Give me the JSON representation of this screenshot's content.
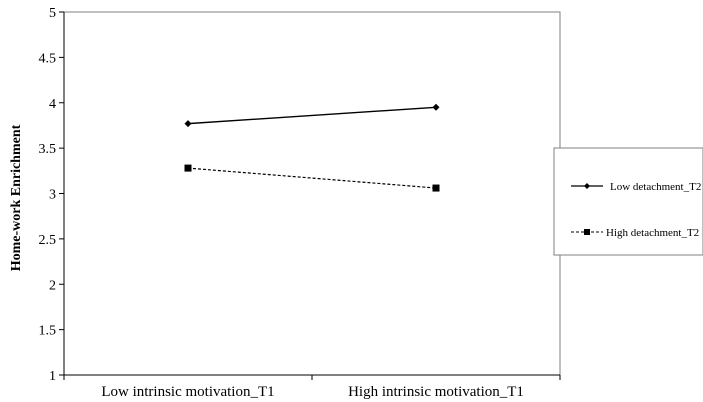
{
  "chart_data": {
    "type": "line",
    "categories": [
      "Low intrinsic motivation_T1",
      "High intrinsic motivation_T1"
    ],
    "ylabel": "Home-work Enrichment",
    "xlabel": "",
    "ylim": [
      1,
      5
    ],
    "yticks": [
      "1",
      "1.5",
      "2",
      "2.5",
      "3",
      "3.5",
      "4",
      "4.5",
      "5"
    ],
    "grid": false,
    "legend_position": "right",
    "series": [
      {
        "name": "Low detachment_T2",
        "values": [
          3.77,
          3.95
        ],
        "line_style": "solid",
        "marker": "diamond",
        "color": "#000000"
      },
      {
        "name": "High detachment_T2",
        "values": [
          3.28,
          3.06
        ],
        "line_style": "dashed",
        "marker": "square",
        "color": "#000000"
      }
    ]
  }
}
